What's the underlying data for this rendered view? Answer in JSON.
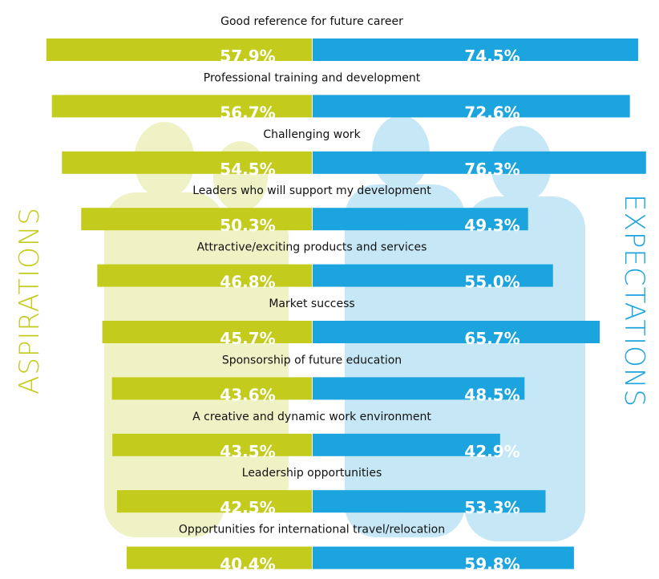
{
  "chart_data": {
    "type": "butterfly",
    "categories": [
      "Good reference for future career",
      "Professional training and development",
      "Challenging work",
      "Leaders who will support my development",
      "Attractive/exciting products and services",
      "Market success",
      "Sponsorship of future education",
      "A creative and dynamic work environment",
      "Leadership opportunities",
      "Opportunities for international travel/relocation"
    ],
    "series": [
      {
        "name": "ASPIRATIONS",
        "color": "#c3cc1c",
        "values": [
          57.9,
          56.7,
          54.5,
          50.3,
          46.8,
          45.7,
          43.6,
          43.5,
          42.5,
          40.4
        ],
        "value_labels": [
          "57.9%",
          "56.7%",
          "54.5%",
          "50.3%",
          "46.8%",
          "45.7%",
          "43.6%",
          "43.5%",
          "42.5%",
          "40.4%"
        ]
      },
      {
        "name": "EXPECTATIONS",
        "color": "#1ba4dd",
        "values": [
          74.5,
          72.6,
          76.3,
          49.3,
          55.0,
          65.7,
          48.5,
          42.9,
          53.3,
          59.8
        ],
        "value_labels": [
          "74.5%",
          "72.6%",
          "76.3%",
          "49.3%",
          "55.0%",
          "65.7%",
          "48.5%",
          "42.9%",
          "53.3%",
          "59.8%"
        ]
      }
    ]
  }
}
